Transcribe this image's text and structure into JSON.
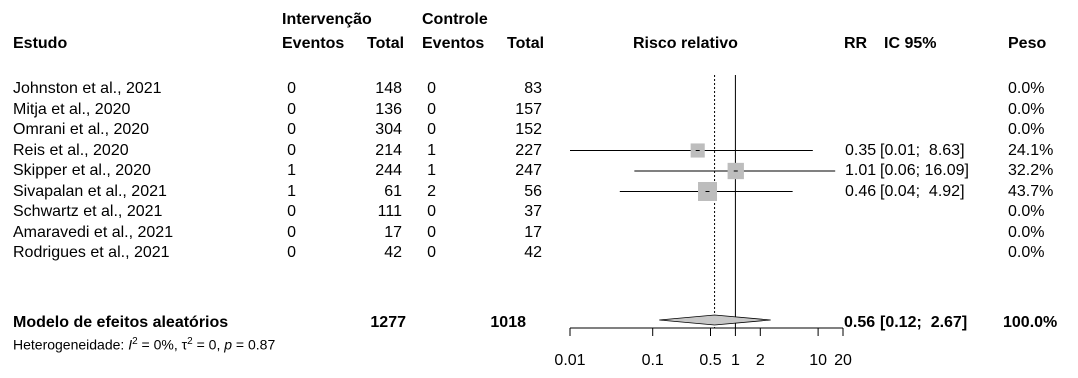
{
  "header": {
    "group1_label": "Intervenção",
    "group2_label": "Controle",
    "col_study": "Estudo",
    "col_events1": "Eventos",
    "col_total1": "Total",
    "col_events2": "Eventos",
    "col_total2": "Total",
    "col_effect": "Risco relativo",
    "col_rr": "RR",
    "col_ci": "IC 95%",
    "col_weight": "Peso"
  },
  "studies": [
    {
      "name": "Johnston et al., 2021",
      "e1": "0",
      "n1": "148",
      "e2": "0",
      "n2": "83",
      "rr": "",
      "ci": "",
      "weight": "0.0%"
    },
    {
      "name": "Mitja et al., 2020",
      "e1": "0",
      "n1": "136",
      "e2": "0",
      "n2": "157",
      "rr": "",
      "ci": "",
      "weight": "0.0%"
    },
    {
      "name": "Omrani et al., 2020",
      "e1": "0",
      "n1": "304",
      "e2": "0",
      "n2": "152",
      "rr": "",
      "ci": "",
      "weight": "0.0%"
    },
    {
      "name": "Reis et al., 2020",
      "e1": "0",
      "n1": "214",
      "e2": "1",
      "n2": "227",
      "rr": "0.35",
      "ci": "[0.01;  8.63]",
      "weight": "24.1%"
    },
    {
      "name": "Skipper et al., 2020",
      "e1": "1",
      "n1": "244",
      "e2": "1",
      "n2": "247",
      "rr": "1.01",
      "ci": "[0.06; 16.09]",
      "weight": "32.2%"
    },
    {
      "name": "Sivapalan et al., 2021",
      "e1": "1",
      "n1": "61",
      "e2": "2",
      "n2": "56",
      "rr": "0.46",
      "ci": "[0.04;  4.92]",
      "weight": "43.7%"
    },
    {
      "name": "Schwartz et al., 2021",
      "e1": "0",
      "n1": "111",
      "e2": "0",
      "n2": "37",
      "rr": "",
      "ci": "",
      "weight": "0.0%"
    },
    {
      "name": "Amaravedi et al., 2021",
      "e1": "0",
      "n1": "17",
      "e2": "0",
      "n2": "17",
      "rr": "",
      "ci": "",
      "weight": "0.0%"
    },
    {
      "name": "Rodrigues et al., 2021",
      "e1": "0",
      "n1": "42",
      "e2": "0",
      "n2": "42",
      "rr": "",
      "ci": "",
      "weight": "0.0%"
    }
  ],
  "pooled": {
    "label": "Modelo de efeitos aleatórios",
    "n1": "1277",
    "n2": "1018",
    "rr": "0.56",
    "ci": "[0.12;  2.67]",
    "weight": "100.0%"
  },
  "heterogeneity": {
    "prefix": "Heterogeneidade: ",
    "i2_symbol": "I",
    "i2_value": " = 0%, ",
    "tau_symbol": "τ",
    "tau_value": " = 0, ",
    "p_symbol": "p",
    "p_value": " = 0.87"
  },
  "colors": {
    "square": "#bdbdbd",
    "diamond": "#c8c8c8",
    "line": "#000000"
  },
  "chart_data": {
    "type": "forest",
    "scale": "log",
    "xlim": [
      0.01,
      20
    ],
    "ticks": [
      0.01,
      0.1,
      0.5,
      1,
      2,
      10,
      20
    ],
    "tick_labels": [
      "0.01",
      "0.1",
      "0.5",
      "1",
      "2",
      "10",
      "20"
    ],
    "null_line": 1,
    "pooled_line": 0.56,
    "estimates": [
      {
        "study": "Reis et al., 2020",
        "rr": 0.35,
        "lower": 0.01,
        "upper": 8.63,
        "weight": 24.1
      },
      {
        "study": "Skipper et al., 2020",
        "rr": 1.01,
        "lower": 0.06,
        "upper": 16.09,
        "weight": 32.2
      },
      {
        "study": "Sivapalan et al., 2021",
        "rr": 0.46,
        "lower": 0.04,
        "upper": 4.92,
        "weight": 43.7
      }
    ],
    "pooled": {
      "rr": 0.56,
      "lower": 0.12,
      "upper": 2.67
    }
  }
}
